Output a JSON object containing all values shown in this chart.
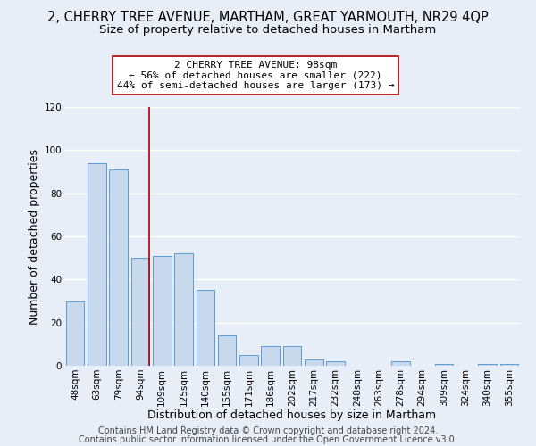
{
  "title": "2, CHERRY TREE AVENUE, MARTHAM, GREAT YARMOUTH, NR29 4QP",
  "subtitle": "Size of property relative to detached houses in Martham",
  "xlabel": "Distribution of detached houses by size in Martham",
  "ylabel": "Number of detached properties",
  "categories": [
    "48sqm",
    "63sqm",
    "79sqm",
    "94sqm",
    "109sqm",
    "125sqm",
    "140sqm",
    "155sqm",
    "171sqm",
    "186sqm",
    "202sqm",
    "217sqm",
    "232sqm",
    "248sqm",
    "263sqm",
    "278sqm",
    "294sqm",
    "309sqm",
    "324sqm",
    "340sqm",
    "355sqm"
  ],
  "values": [
    30,
    94,
    91,
    50,
    51,
    52,
    35,
    14,
    5,
    9,
    9,
    3,
    2,
    0,
    0,
    2,
    0,
    1,
    0,
    1,
    1
  ],
  "bar_color": "#c8d9ed",
  "bar_edge_color": "#5b9bd5",
  "highlight_index": 3,
  "highlight_line_color": "#aa0000",
  "ylim": [
    0,
    120
  ],
  "yticks": [
    0,
    20,
    40,
    60,
    80,
    100,
    120
  ],
  "annotation_box_text": "2 CHERRY TREE AVENUE: 98sqm\n← 56% of detached houses are smaller (222)\n44% of semi-detached houses are larger (173) →",
  "footer_line1": "Contains HM Land Registry data © Crown copyright and database right 2024.",
  "footer_line2": "Contains public sector information licensed under the Open Government Licence v3.0.",
  "background_color": "#e8eef8",
  "plot_bg_color": "#e8eef8",
  "grid_color": "#ffffff",
  "title_fontsize": 10.5,
  "subtitle_fontsize": 9.5,
  "axis_label_fontsize": 9,
  "tick_fontsize": 7.5,
  "footer_fontsize": 7,
  "annot_fontsize": 8
}
